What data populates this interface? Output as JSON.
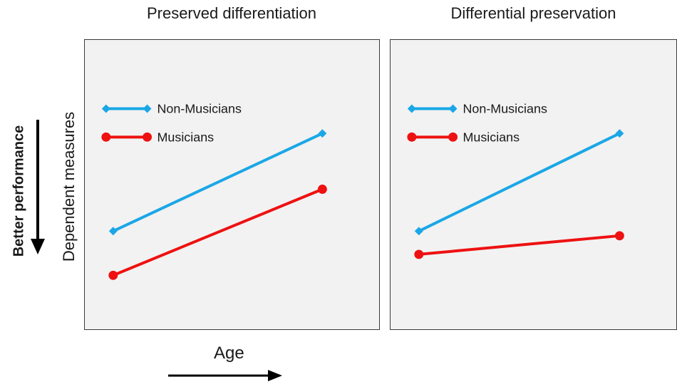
{
  "chart_data": [
    {
      "type": "line",
      "title": "Preserved differentiation",
      "xlabel": "Age",
      "ylabel": "Dependent measures",
      "ylim": [
        0,
        100
      ],
      "xlim": [
        0,
        1
      ],
      "legend_position": "top-left",
      "grid": false,
      "series": [
        {
          "name": "Non-Musicians",
          "color": "#1aa7e6",
          "marker": "diamond",
          "x": [
            0,
            1
          ],
          "values": [
            30,
            72
          ]
        },
        {
          "name": "Musicians",
          "color": "#ee1111",
          "marker": "circle",
          "x": [
            0,
            1
          ],
          "values": [
            11,
            48
          ]
        }
      ]
    },
    {
      "type": "line",
      "title": "Differential preservation",
      "xlabel": "Age",
      "ylabel": "Dependent measures",
      "ylim": [
        0,
        100
      ],
      "xlim": [
        0,
        1
      ],
      "legend_position": "top-left",
      "grid": false,
      "series": [
        {
          "name": "Non-Musicians",
          "color": "#1aa7e6",
          "marker": "diamond",
          "x": [
            0,
            1
          ],
          "values": [
            30,
            72
          ]
        },
        {
          "name": "Musicians",
          "color": "#ee1111",
          "marker": "circle",
          "x": [
            0,
            1
          ],
          "values": [
            20,
            28
          ]
        }
      ]
    }
  ],
  "annotations": {
    "better_performance": "Better performance",
    "age": "Age"
  }
}
